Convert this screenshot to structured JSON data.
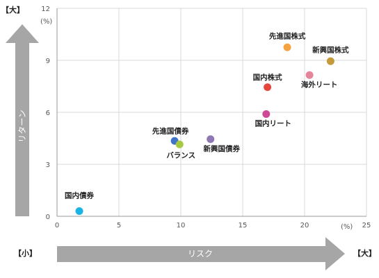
{
  "chart_data": {
    "type": "scatter",
    "title": "",
    "xlabel": "リスク",
    "ylabel": "リターン",
    "xlim": [
      0,
      25
    ],
    "ylim": [
      0,
      12
    ],
    "x_ticks": [
      0,
      5,
      10,
      15,
      20,
      25
    ],
    "y_ticks": [
      0,
      3,
      6,
      9,
      12
    ],
    "x_unit": "(%)",
    "y_unit": "(%)",
    "grid": true,
    "corner_labels": {
      "y_high": "【大】",
      "x_low": "【小】",
      "x_high": "【大】"
    },
    "points": [
      {
        "name": "国内債券",
        "x": 1.8,
        "y": 0.3,
        "color": "#1ab3e6"
      },
      {
        "name": "先進国債券",
        "x": 9.5,
        "y": 4.35,
        "color": "#3f74c9"
      },
      {
        "name": "バランス",
        "x": 9.9,
        "y": 4.15,
        "color": "#a6c93f"
      },
      {
        "name": "新興国債券",
        "x": 12.4,
        "y": 4.45,
        "color": "#8e78b4"
      },
      {
        "name": "国内リート",
        "x": 16.9,
        "y": 5.9,
        "color": "#cf4a96"
      },
      {
        "name": "国内株式",
        "x": 17.0,
        "y": 7.45,
        "color": "#e5473f"
      },
      {
        "name": "先進国株式",
        "x": 18.6,
        "y": 9.75,
        "color": "#f4a340"
      },
      {
        "name": "海外リート",
        "x": 20.4,
        "y": 8.15,
        "color": "#e5859a"
      },
      {
        "name": "新興国株式",
        "x": 22.1,
        "y": 8.95,
        "color": "#c49a3a"
      }
    ]
  }
}
